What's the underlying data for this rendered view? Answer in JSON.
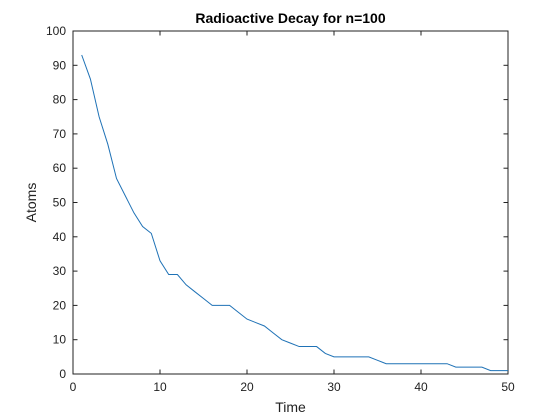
{
  "chart_data": {
    "type": "line",
    "title": "Radioactive Decay for n=100",
    "xlabel": "Time",
    "ylabel": "Atoms",
    "xlim": [
      0,
      50
    ],
    "ylim": [
      0,
      100
    ],
    "xticks": [
      0,
      10,
      20,
      30,
      40,
      50
    ],
    "yticks": [
      0,
      10,
      20,
      30,
      40,
      50,
      60,
      70,
      80,
      90,
      100
    ],
    "grid": false,
    "box": true,
    "series": [
      {
        "color": "#1f72b6",
        "x": [
          1,
          2,
          3,
          4,
          5,
          6,
          7,
          8,
          9,
          10,
          11,
          12,
          13,
          14,
          15,
          16,
          17,
          18,
          19,
          20,
          21,
          22,
          23,
          24,
          25,
          26,
          27,
          28,
          29,
          30,
          31,
          32,
          33,
          34,
          35,
          36,
          37,
          38,
          39,
          40,
          41,
          42,
          43,
          44,
          45,
          46,
          47,
          48,
          49,
          50
        ],
        "y": [
          93,
          86,
          75,
          67,
          57,
          52,
          47,
          43,
          41,
          33,
          29,
          29,
          26,
          24,
          22,
          20,
          20,
          20,
          18,
          16,
          15,
          14,
          12,
          10,
          9,
          8,
          8,
          8,
          6,
          5,
          5,
          5,
          5,
          5,
          4,
          3,
          3,
          3,
          3,
          3,
          3,
          3,
          3,
          2,
          2,
          2,
          2,
          1,
          1,
          1
        ]
      }
    ]
  }
}
